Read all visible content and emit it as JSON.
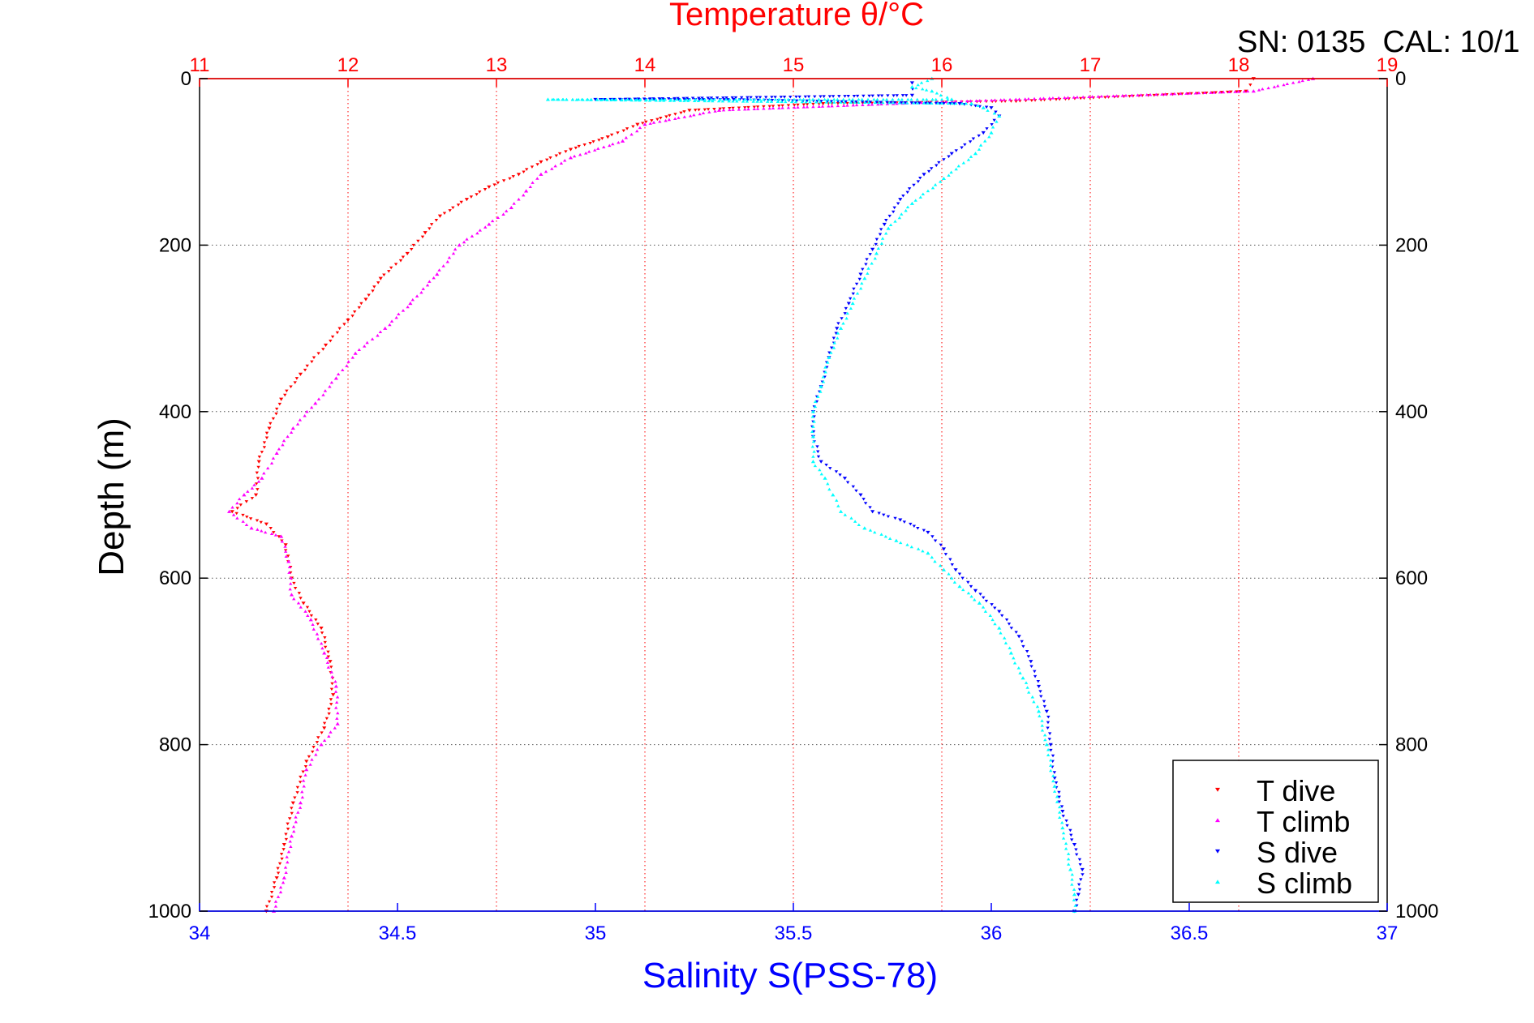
{
  "chart_data": {
    "type": "scatter",
    "title": "Temperature θ/°C",
    "header_text": "SN: 0135  CAL: 10/1",
    "xlabel": "Salinity S(PSS-78)",
    "ylabel": "Depth (m)",
    "xlim": [
      34,
      37
    ],
    "x2lim": [
      11,
      19
    ],
    "ylim": [
      0,
      1000
    ],
    "y_reversed": true,
    "xticks": [
      "34",
      "34.5",
      "35",
      "35.5",
      "36",
      "36.5",
      "37"
    ],
    "x2ticks": [
      "11",
      "12",
      "13",
      "14",
      "15",
      "16",
      "17",
      "18",
      "19"
    ],
    "yticks": [
      "0",
      "200",
      "400",
      "600",
      "800",
      "1000"
    ],
    "grid": true,
    "legend_position": "bottom-right",
    "colors": {
      "title": "#ff0000",
      "xlabel": "#0000ff",
      "axis": "#000000"
    },
    "series": [
      {
        "name": "T dive",
        "axis": "top",
        "color": "#ff0000",
        "marker": "triangle-down",
        "points": [
          [
            18.1,
            0
          ],
          [
            18.05,
            15
          ],
          [
            16.5,
            27
          ],
          [
            15.2,
            30
          ],
          [
            14.3,
            38
          ],
          [
            13.95,
            55
          ],
          [
            13.75,
            70
          ],
          [
            13.5,
            85
          ],
          [
            13.3,
            100
          ],
          [
            13.15,
            115
          ],
          [
            12.95,
            130
          ],
          [
            12.8,
            145
          ],
          [
            12.62,
            165
          ],
          [
            12.52,
            185
          ],
          [
            12.4,
            210
          ],
          [
            12.22,
            240
          ],
          [
            12.12,
            265
          ],
          [
            12.0,
            290
          ],
          [
            11.85,
            320
          ],
          [
            11.68,
            355
          ],
          [
            11.55,
            385
          ],
          [
            11.47,
            420
          ],
          [
            11.4,
            460
          ],
          [
            11.38,
            500
          ],
          [
            11.22,
            520
          ],
          [
            11.45,
            535
          ],
          [
            11.58,
            560
          ],
          [
            11.62,
            600
          ],
          [
            11.7,
            630
          ],
          [
            11.82,
            660
          ],
          [
            11.88,
            700
          ],
          [
            11.9,
            740
          ],
          [
            11.84,
            780
          ],
          [
            11.72,
            820
          ],
          [
            11.63,
            870
          ],
          [
            11.57,
            920
          ],
          [
            11.52,
            960
          ],
          [
            11.45,
            1000
          ]
        ]
      },
      {
        "name": "T climb",
        "axis": "top",
        "color": "#ff00ff",
        "marker": "triangle-up",
        "points": [
          [
            18.5,
            0
          ],
          [
            18.1,
            15
          ],
          [
            16.0,
            28
          ],
          [
            14.5,
            38
          ],
          [
            14.0,
            55
          ],
          [
            13.85,
            75
          ],
          [
            13.5,
            95
          ],
          [
            13.3,
            115
          ],
          [
            13.2,
            135
          ],
          [
            13.1,
            155
          ],
          [
            12.95,
            175
          ],
          [
            12.75,
            200
          ],
          [
            12.6,
            235
          ],
          [
            12.42,
            270
          ],
          [
            12.25,
            300
          ],
          [
            12.05,
            330
          ],
          [
            11.92,
            360
          ],
          [
            11.78,
            390
          ],
          [
            11.63,
            420
          ],
          [
            11.52,
            450
          ],
          [
            11.42,
            480
          ],
          [
            11.3,
            500
          ],
          [
            11.2,
            520
          ],
          [
            11.35,
            540
          ],
          [
            11.55,
            550
          ],
          [
            11.6,
            580
          ],
          [
            11.62,
            620
          ],
          [
            11.75,
            650
          ],
          [
            11.84,
            690
          ],
          [
            11.92,
            730
          ],
          [
            11.93,
            775
          ],
          [
            11.82,
            800
          ],
          [
            11.72,
            830
          ],
          [
            11.68,
            870
          ],
          [
            11.62,
            910
          ],
          [
            11.57,
            960
          ],
          [
            11.5,
            1000
          ]
        ]
      },
      {
        "name": "S dive",
        "axis": "bottom",
        "color": "#0000ff",
        "marker": "triangle-down",
        "points": [
          [
            35.8,
            5
          ],
          [
            35.8,
            20
          ],
          [
            35.0,
            25
          ],
          [
            35.35,
            25
          ],
          [
            35.92,
            30
          ],
          [
            36.0,
            35
          ],
          [
            36.02,
            45
          ],
          [
            35.98,
            65
          ],
          [
            35.9,
            90
          ],
          [
            35.83,
            115
          ],
          [
            35.77,
            145
          ],
          [
            35.73,
            175
          ],
          [
            35.7,
            205
          ],
          [
            35.67,
            235
          ],
          [
            35.64,
            270
          ],
          [
            35.61,
            300
          ],
          [
            35.59,
            335
          ],
          [
            35.57,
            370
          ],
          [
            35.55,
            400
          ],
          [
            35.55,
            430
          ],
          [
            35.57,
            460
          ],
          [
            35.63,
            480
          ],
          [
            35.67,
            500
          ],
          [
            35.7,
            520
          ],
          [
            35.77,
            530
          ],
          [
            35.84,
            545
          ],
          [
            35.88,
            565
          ],
          [
            35.91,
            590
          ],
          [
            35.96,
            615
          ],
          [
            36.02,
            640
          ],
          [
            36.07,
            670
          ],
          [
            36.1,
            700
          ],
          [
            36.12,
            730
          ],
          [
            36.14,
            760
          ],
          [
            36.15,
            800
          ],
          [
            36.16,
            840
          ],
          [
            36.18,
            880
          ],
          [
            36.21,
            920
          ],
          [
            36.23,
            950
          ],
          [
            36.22,
            980
          ],
          [
            36.21,
            1000
          ]
        ]
      },
      {
        "name": "S climb",
        "axis": "bottom",
        "color": "#00ffff",
        "marker": "triangle-up",
        "points": [
          [
            35.85,
            0
          ],
          [
            35.8,
            10
          ],
          [
            35.85,
            15
          ],
          [
            35.9,
            25
          ],
          [
            34.88,
            25
          ],
          [
            35.95,
            30
          ],
          [
            35.98,
            35
          ],
          [
            36.02,
            45
          ],
          [
            36.0,
            65
          ],
          [
            35.96,
            90
          ],
          [
            35.88,
            120
          ],
          [
            35.8,
            150
          ],
          [
            35.74,
            180
          ],
          [
            35.71,
            210
          ],
          [
            35.68,
            240
          ],
          [
            35.65,
            270
          ],
          [
            35.62,
            300
          ],
          [
            35.59,
            335
          ],
          [
            35.57,
            370
          ],
          [
            35.55,
            400
          ],
          [
            35.55,
            430
          ],
          [
            35.55,
            460
          ],
          [
            35.58,
            480
          ],
          [
            35.6,
            500
          ],
          [
            35.62,
            520
          ],
          [
            35.68,
            540
          ],
          [
            35.76,
            555
          ],
          [
            35.84,
            570
          ],
          [
            35.88,
            590
          ],
          [
            35.92,
            610
          ],
          [
            35.97,
            630
          ],
          [
            36.02,
            660
          ],
          [
            36.05,
            690
          ],
          [
            36.08,
            720
          ],
          [
            36.12,
            760
          ],
          [
            36.14,
            800
          ],
          [
            36.16,
            850
          ],
          [
            36.18,
            900
          ],
          [
            36.2,
            950
          ],
          [
            36.21,
            980
          ],
          [
            36.21,
            1000
          ]
        ]
      }
    ]
  }
}
